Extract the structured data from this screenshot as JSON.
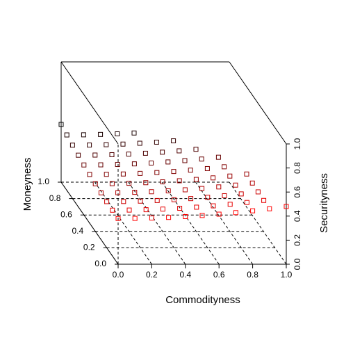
{
  "chart_data": {
    "type": "scatter3d",
    "xlabel": "Commodityness",
    "ylabel": "Moneyness",
    "zlabel": "Securityness",
    "xlim": [
      0,
      1
    ],
    "ylim": [
      0,
      1
    ],
    "zlim": [
      0,
      1
    ],
    "xticks": [
      {
        "value": 0,
        "label": "0.0"
      },
      {
        "value": 0.2,
        "label": "0.2"
      },
      {
        "value": 0.4,
        "label": "0.4"
      },
      {
        "value": 0.6,
        "label": "0.6"
      },
      {
        "value": 0.8,
        "label": "0.8"
      },
      {
        "value": 1,
        "label": "1.0"
      }
    ],
    "yticks": [
      {
        "value": 0,
        "label": "0.0"
      },
      {
        "value": 0.2,
        "label": "0.2"
      },
      {
        "value": 0.4,
        "label": "0.4"
      },
      {
        "value": 0.6,
        "label": "0.6"
      },
      {
        "value": 0.8,
        "label": "0.8"
      },
      {
        "value": 1,
        "label": "1.0"
      }
    ],
    "zticks": [
      {
        "value": 0,
        "label": "0.0"
      },
      {
        "value": 0.2,
        "label": "0.2"
      },
      {
        "value": 0.4,
        "label": "0.4"
      },
      {
        "value": 0.6,
        "label": "0.6"
      },
      {
        "value": 0.8,
        "label": "0.8"
      },
      {
        "value": 1,
        "label": "1.0"
      }
    ],
    "grid": true,
    "series": [
      {
        "color": "#ff0000",
        "y": 0,
        "x": [
          0,
          0.1,
          0.2,
          0.3,
          0.4,
          0.5,
          0.6,
          0.7,
          0.8,
          0.9,
          1
        ],
        "z": [
          0.38,
          0.381,
          0.384,
          0.389,
          0.396,
          0.405,
          0.416,
          0.429,
          0.444,
          0.461,
          0.48
        ]
      },
      {
        "color": "#e60000",
        "y": 0.1,
        "x": [
          0,
          0.1,
          0.2,
          0.3,
          0.4,
          0.5,
          0.6,
          0.7,
          0.8,
          0.9
        ],
        "z": [
          0.381,
          0.382,
          0.385,
          0.39,
          0.397,
          0.406,
          0.417,
          0.43,
          0.445,
          0.462
        ]
      },
      {
        "color": "#cc0000",
        "y": 0.2,
        "x": [
          0,
          0.1,
          0.2,
          0.3,
          0.4,
          0.5,
          0.6,
          0.7,
          0.8,
          0.9
        ],
        "z": [
          0.384,
          0.385,
          0.388,
          0.393,
          0.4,
          0.409,
          0.42,
          0.433,
          0.448,
          0.465
        ]
      },
      {
        "color": "#b30000",
        "y": 0.3,
        "x": [
          0,
          0.1,
          0.2,
          0.3,
          0.4,
          0.5,
          0.6,
          0.7,
          0.8,
          0.9
        ],
        "z": [
          0.389,
          0.39,
          0.393,
          0.398,
          0.405,
          0.414,
          0.425,
          0.438,
          0.453,
          0.47
        ]
      },
      {
        "color": "#990000",
        "y": 0.4,
        "x": [
          0,
          0.1,
          0.2,
          0.3,
          0.4,
          0.5,
          0.6,
          0.7,
          0.8,
          0.9
        ],
        "z": [
          0.396,
          0.397,
          0.4,
          0.405,
          0.412,
          0.421,
          0.432,
          0.445,
          0.46,
          0.477
        ]
      },
      {
        "color": "#800000",
        "y": 0.5,
        "x": [
          0,
          0.1,
          0.2,
          0.3,
          0.4,
          0.5,
          0.6,
          0.7,
          0.8
        ],
        "z": [
          0.405,
          0.406,
          0.409,
          0.414,
          0.421,
          0.43,
          0.441,
          0.454,
          0.469
        ]
      },
      {
        "color": "#660000",
        "y": 0.6,
        "x": [
          0,
          0.1,
          0.2,
          0.3,
          0.4,
          0.5,
          0.6,
          0.7,
          0.8
        ],
        "z": [
          0.416,
          0.417,
          0.42,
          0.425,
          0.432,
          0.441,
          0.452,
          0.465,
          0.48
        ]
      },
      {
        "color": "#4d0000",
        "y": 0.7,
        "x": [
          0,
          0.1,
          0.2,
          0.3,
          0.4,
          0.5,
          0.6,
          0.7
        ],
        "z": [
          0.429,
          0.43,
          0.433,
          0.438,
          0.445,
          0.454,
          0.465,
          0.478
        ]
      },
      {
        "color": "#330000",
        "y": 0.8,
        "x": [
          0,
          0.1,
          0.2,
          0.3,
          0.4,
          0.5,
          0.6
        ],
        "z": [
          0.444,
          0.445,
          0.448,
          0.453,
          0.46,
          0.469,
          0.48
        ]
      },
      {
        "color": "#1a0000",
        "y": 0.9,
        "x": [
          0,
          0.1,
          0.2,
          0.3,
          0.4
        ],
        "z": [
          0.461,
          0.462,
          0.465,
          0.47,
          0.477
        ]
      },
      {
        "color": "#000000",
        "y": 1,
        "x": [
          0
        ],
        "z": [
          0.48
        ]
      }
    ]
  }
}
